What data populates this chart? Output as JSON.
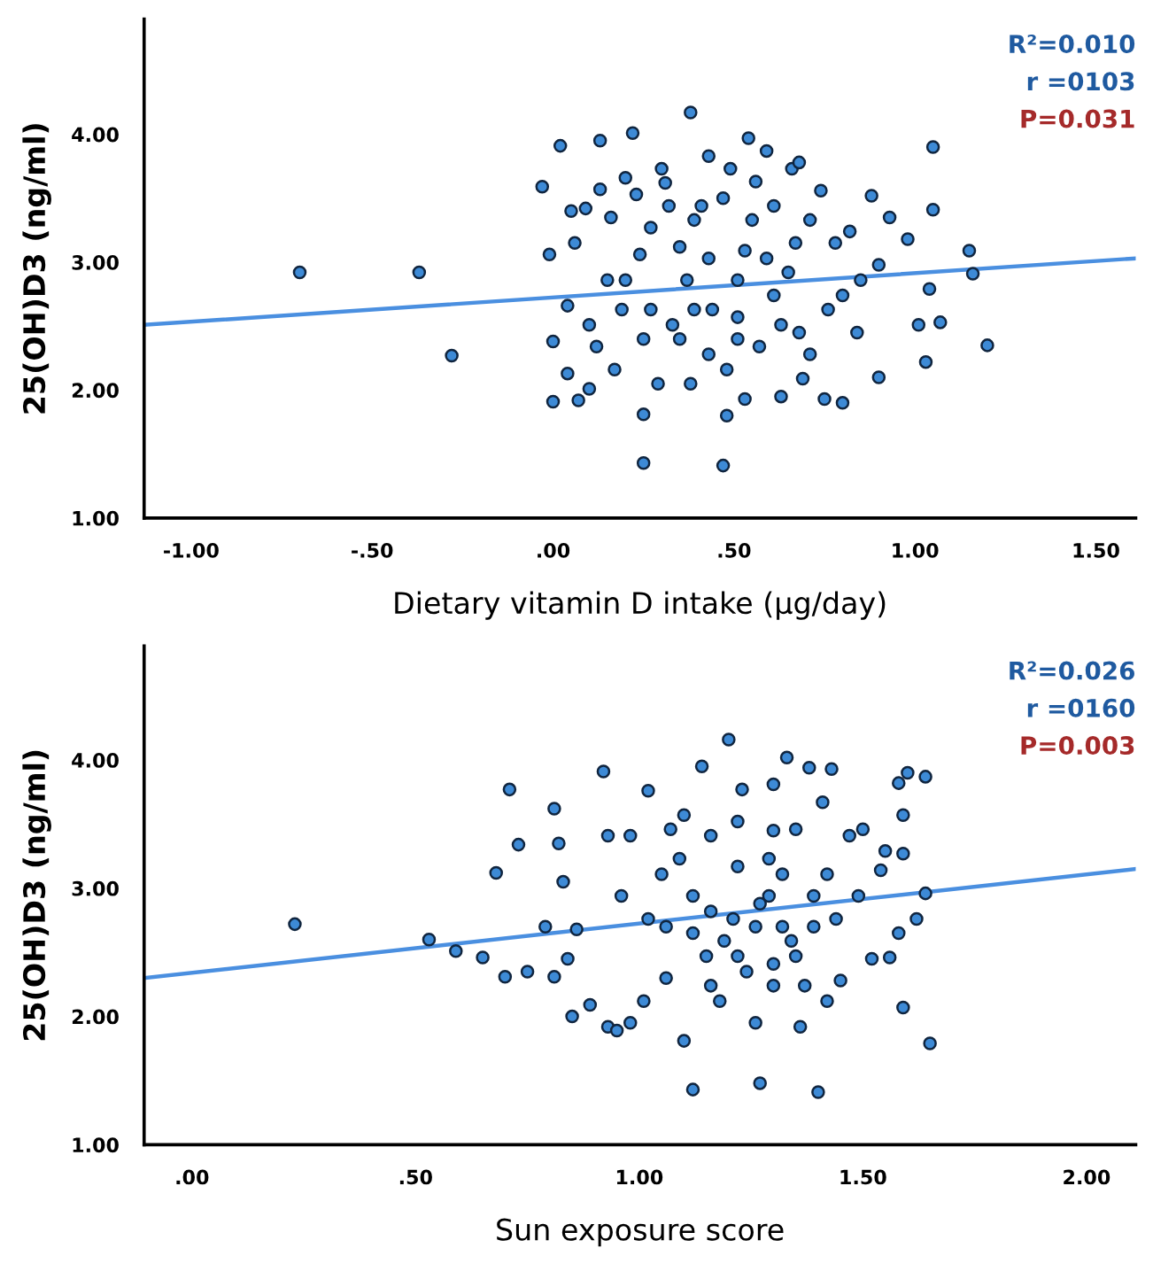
{
  "chart_data": [
    {
      "type": "scatter",
      "xlabel": "Dietary vitamin D intake (µg/day)",
      "ylabel": "25(OH)D3 (ng/ml)",
      "xlim": [
        -1.13,
        1.61
      ],
      "ylim": [
        1.0,
        4.9
      ],
      "xticks": [
        {
          "value": -1.0,
          "label": "-1.00"
        },
        {
          "value": -0.5,
          "label": "-.50"
        },
        {
          "value": 0,
          "label": ".00"
        },
        {
          "value": 0.5,
          "label": ".50"
        },
        {
          "value": 1.0,
          "label": "1.00"
        },
        {
          "value": 1.5,
          "label": "1.50"
        }
      ],
      "yticks": [
        {
          "value": 1,
          "label": "1.00"
        },
        {
          "value": 2,
          "label": "2.00"
        },
        {
          "value": 3,
          "label": "3.00"
        },
        {
          "value": 4,
          "label": "4.00"
        }
      ],
      "grid": false,
      "annotations": [
        "R²=0.010",
        "r =0103",
        "P=0.031"
      ],
      "series": [
        {
          "marker": "circle",
          "color": "#3d8ad6",
          "x": [
            -0.7,
            -0.37,
            -0.28,
            -0.03,
            -0.01,
            0.0,
            0.0,
            0.02,
            0.04,
            0.05,
            0.06,
            0.04,
            0.07,
            0.1,
            0.09,
            0.1,
            0.13,
            0.13,
            0.12,
            0.16,
            0.17,
            0.2,
            0.2,
            0.22,
            0.23,
            0.24,
            0.25,
            0.25,
            0.27,
            0.29,
            0.3,
            0.32,
            0.33,
            0.35,
            0.38,
            0.37,
            0.38,
            0.41,
            0.43,
            0.44,
            0.47,
            0.47,
            0.48,
            0.49,
            0.48,
            0.51,
            0.53,
            0.54,
            0.53,
            0.56,
            0.59,
            0.57,
            0.61,
            0.61,
            0.63,
            0.65,
            0.66,
            0.68,
            0.68,
            0.69,
            0.71,
            0.74,
            0.75,
            0.76,
            0.78,
            0.8,
            0.8,
            0.82,
            0.84,
            0.85,
            0.88,
            0.9,
            0.9,
            0.93,
            0.98,
            1.01,
            1.05,
            1.04,
            1.05,
            1.03,
            1.07,
            1.15,
            1.16,
            1.2,
            0.27,
            0.31,
            0.39,
            0.43,
            0.51,
            0.55,
            0.59,
            0.43,
            0.35,
            0.25,
            0.19,
            0.15,
            0.63,
            0.71,
            0.67,
            0.51,
            0.39
          ],
          "values": [
            2.92,
            2.92,
            2.27,
            3.59,
            3.06,
            2.38,
            1.91,
            3.91,
            2.66,
            3.4,
            3.15,
            2.13,
            1.92,
            2.01,
            3.42,
            2.51,
            3.95,
            3.57,
            2.34,
            3.35,
            2.16,
            2.86,
            3.66,
            4.01,
            3.53,
            3.06,
            1.81,
            1.43,
            2.63,
            2.05,
            3.73,
            3.44,
            2.51,
            3.12,
            4.17,
            2.86,
            2.05,
            3.44,
            3.83,
            2.63,
            3.5,
            1.41,
            1.8,
            3.73,
            2.16,
            2.57,
            1.93,
            3.97,
            3.09,
            3.63,
            3.87,
            2.34,
            3.44,
            2.74,
            1.95,
            2.92,
            3.73,
            3.78,
            2.45,
            2.09,
            3.33,
            3.56,
            1.93,
            2.63,
            3.15,
            1.9,
            2.74,
            3.24,
            2.45,
            2.86,
            3.52,
            2.98,
            2.1,
            3.35,
            3.18,
            2.51,
            3.9,
            2.79,
            3.41,
            2.22,
            2.53,
            3.09,
            2.91,
            2.35,
            3.27,
            3.62,
            3.33,
            3.03,
            2.86,
            3.33,
            3.03,
            2.28,
            2.4,
            2.4,
            2.63,
            2.86,
            2.51,
            2.28,
            3.15,
            2.4,
            2.63
          ]
        },
        {
          "type": "line",
          "color": "#4a8fe0",
          "x": [
            -1.13,
            1.61
          ],
          "values": [
            2.51,
            3.03
          ]
        }
      ]
    },
    {
      "type": "scatter",
      "xlabel": "Sun exposure score",
      "ylabel": "25(OH)D3 (ng/ml)",
      "xlim": [
        -0.107,
        2.11
      ],
      "ylim": [
        1.0,
        4.89
      ],
      "xticks": [
        {
          "value": 0,
          "label": ".00"
        },
        {
          "value": 0.5,
          "label": ".50"
        },
        {
          "value": 1.0,
          "label": "1.00"
        },
        {
          "value": 1.5,
          "label": "1.50"
        },
        {
          "value": 2.0,
          "label": "2.00"
        }
      ],
      "yticks": [
        {
          "value": 1,
          "label": "1.00"
        },
        {
          "value": 2,
          "label": "2.00"
        },
        {
          "value": 3,
          "label": "3.00"
        },
        {
          "value": 4,
          "label": "4.00"
        }
      ],
      "grid": false,
      "annotations": [
        "R²=0.026",
        "r =0160",
        "P=0.003"
      ],
      "series": [
        {
          "marker": "circle",
          "color": "#3d8ad6",
          "x": [
            0.23,
            0.53,
            0.59,
            0.65,
            0.7,
            0.71,
            0.68,
            0.73,
            0.75,
            0.79,
            0.81,
            0.81,
            0.82,
            0.83,
            0.84,
            0.85,
            0.86,
            0.89,
            0.92,
            0.93,
            0.93,
            0.95,
            0.96,
            0.98,
            0.98,
            1.01,
            1.02,
            1.02,
            1.05,
            1.06,
            1.07,
            1.1,
            1.1,
            1.12,
            1.12,
            1.14,
            1.15,
            1.16,
            1.18,
            1.2,
            1.21,
            1.22,
            1.23,
            1.24,
            1.26,
            1.27,
            1.27,
            1.3,
            1.3,
            1.3,
            1.33,
            1.32,
            1.34,
            1.35,
            1.36,
            1.38,
            1.39,
            1.4,
            1.41,
            1.42,
            1.43,
            1.44,
            1.45,
            1.47,
            1.49,
            1.5,
            1.52,
            1.54,
            1.55,
            1.56,
            1.58,
            1.58,
            1.59,
            1.59,
            1.6,
            1.59,
            1.62,
            1.64,
            1.64,
            1.65,
            1.09,
            1.12,
            1.16,
            1.19,
            1.22,
            1.26,
            1.29,
            1.32,
            1.35,
            1.39,
            1.42,
            1.16,
            1.22,
            1.29,
            1.06,
            1.3,
            1.37
          ],
          "values": [
            2.72,
            2.6,
            2.51,
            2.46,
            2.31,
            3.77,
            3.12,
            3.34,
            2.35,
            2.7,
            3.62,
            2.31,
            3.35,
            3.05,
            2.45,
            2.0,
            2.68,
            2.09,
            3.91,
            3.41,
            1.92,
            1.89,
            2.94,
            1.95,
            3.41,
            2.12,
            3.76,
            2.76,
            3.11,
            2.3,
            3.46,
            1.81,
            3.57,
            1.43,
            2.94,
            3.95,
            2.47,
            3.41,
            2.12,
            4.16,
            2.76,
            3.17,
            3.77,
            2.35,
            1.95,
            1.48,
            2.88,
            3.81,
            3.45,
            2.24,
            4.02,
            3.11,
            2.59,
            3.46,
            1.92,
            3.94,
            2.94,
            1.41,
            3.67,
            2.12,
            3.93,
            2.76,
            2.28,
            3.41,
            2.94,
            3.46,
            2.45,
            3.14,
            3.29,
            2.46,
            3.82,
            2.65,
            3.57,
            2.07,
            3.9,
            3.27,
            2.76,
            2.96,
            3.87,
            1.79,
            3.23,
            2.65,
            2.82,
            2.59,
            2.47,
            2.7,
            2.94,
            2.7,
            2.47,
            2.7,
            3.11,
            2.24,
            3.52,
            3.23,
            2.7,
            2.41,
            2.24
          ]
        },
        {
          "type": "line",
          "color": "#4a8fe0",
          "x": [
            -0.107,
            2.11
          ],
          "values": [
            2.3,
            3.15
          ]
        }
      ]
    }
  ]
}
